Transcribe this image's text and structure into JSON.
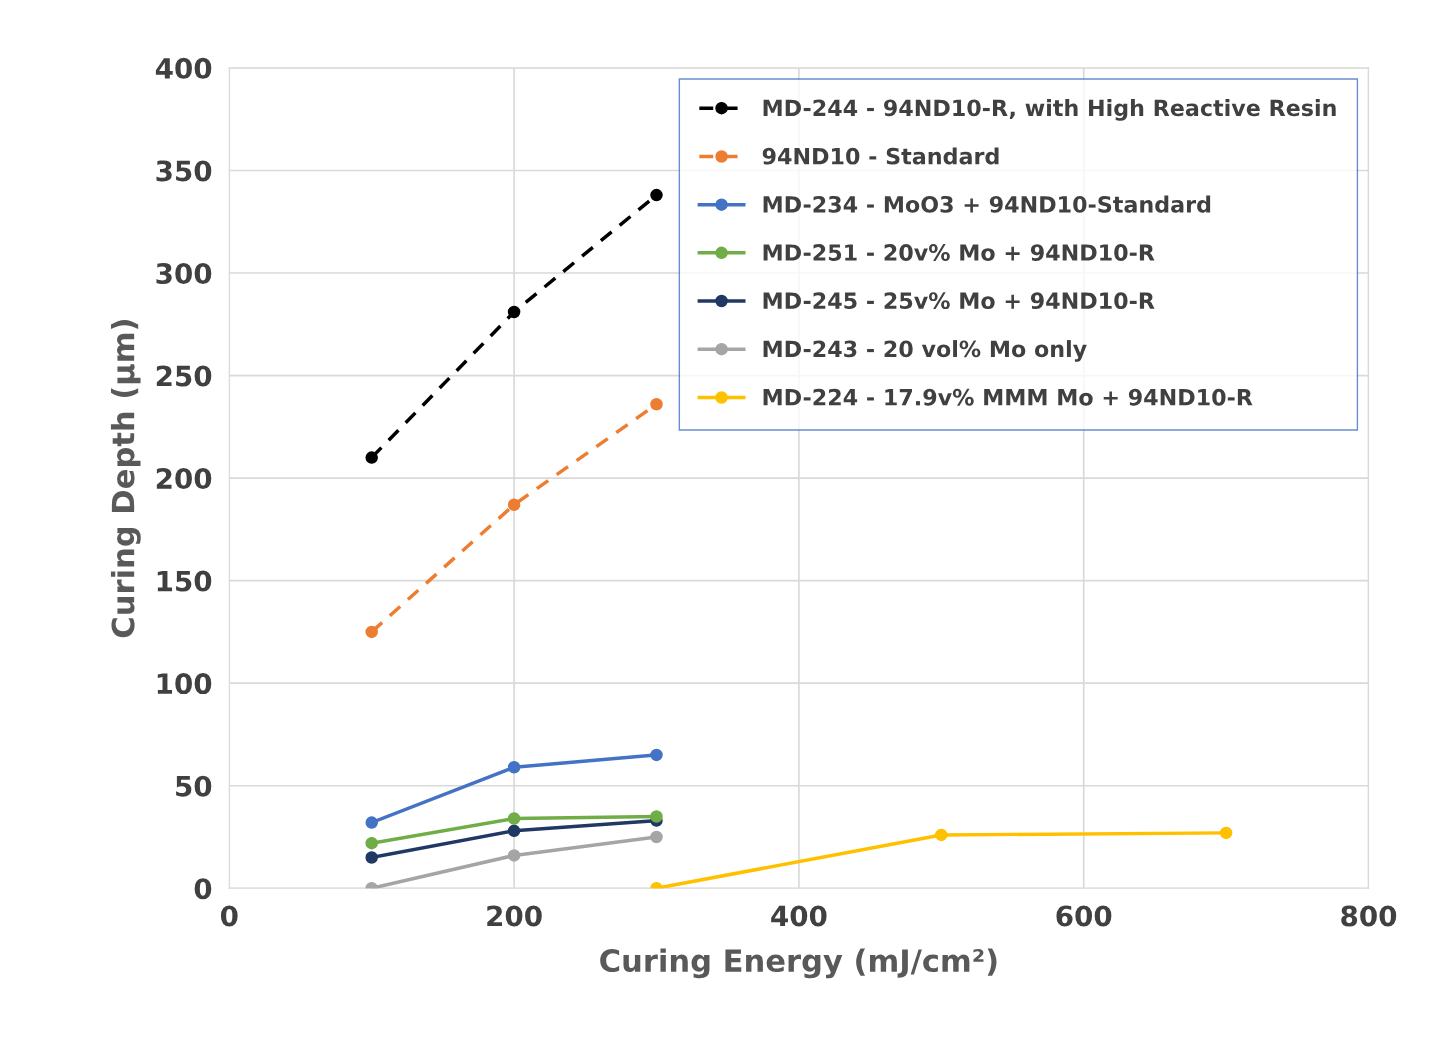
{
  "chart_data": {
    "type": "line",
    "xlabel": "Curing Energy (mJ/cm²)",
    "ylabel": "Curing Depth (µm)",
    "x": [
      100,
      200,
      300
    ],
    "series": [
      {
        "name": "MD-244 - 94ND10-R, with High Reactive Resin",
        "color": "#000000",
        "values": [
          210,
          281,
          338
        ],
        "line_style": "dashed"
      },
      {
        "name": "94ND10 - Standard",
        "color": "#ed7d31",
        "values": [
          125,
          187,
          236
        ],
        "line_style": "dashed"
      },
      {
        "name": "MD-234 - MoO3 + 94ND10-Standard",
        "color": "#4472c4",
        "values": [
          32,
          59,
          65
        ]
      },
      {
        "name": "MD-251 - 20v% Mo + 94ND10-R",
        "color": "#70ad47",
        "values": [
          22,
          34,
          35
        ]
      },
      {
        "name": "MD-245 - 25v% Mo + 94ND10-R",
        "color": "#203864",
        "values": [
          15,
          28,
          33
        ]
      },
      {
        "name": "MD-243 - 20 vol% Mo only",
        "color": "#a5a5a5",
        "values": [
          0,
          16,
          25
        ]
      },
      {
        "name": "MD-224 - 17.9v% MMM Mo + 94ND10-R",
        "color": "#ffc000",
        "x": [
          300,
          500,
          700
        ],
        "values": [
          0,
          26,
          27
        ]
      }
    ],
    "xlim": [
      0,
      800
    ],
    "xticks": [
      0,
      200,
      400,
      600,
      800
    ],
    "ylim": [
      0,
      400
    ],
    "yticks": [
      0,
      50,
      100,
      150,
      200,
      250,
      300,
      350,
      400
    ],
    "grid": true,
    "legend": "top right",
    "marker": "circle",
    "line_style": "solid"
  }
}
